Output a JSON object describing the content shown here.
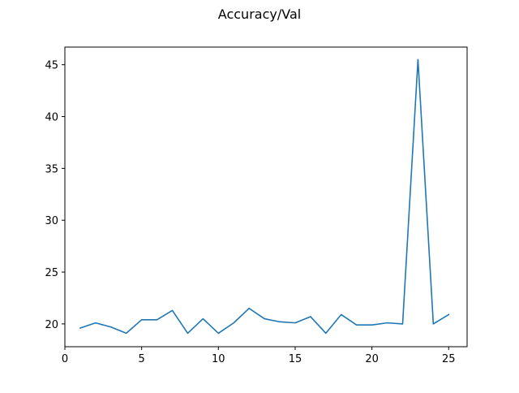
{
  "chart_data": {
    "type": "line",
    "title": "Accuracy/Val",
    "xlabel": "",
    "ylabel": "",
    "xlim": [
      0,
      26.2
    ],
    "ylim": [
      17.8,
      46.7
    ],
    "xticks": [
      0,
      5,
      10,
      15,
      20,
      25
    ],
    "yticks": [
      20,
      25,
      30,
      35,
      40,
      45
    ],
    "grid": false,
    "series": [
      {
        "color": "#1f77b4",
        "x": [
          1,
          2,
          3,
          4,
          5,
          6,
          7,
          8,
          9,
          10,
          11,
          12,
          13,
          14,
          15,
          16,
          17,
          18,
          19,
          20,
          21,
          22,
          23,
          24,
          25
        ],
        "y": [
          19.6,
          20.1,
          19.7,
          19.1,
          20.4,
          20.4,
          21.3,
          19.1,
          20.5,
          19.1,
          20.1,
          21.5,
          20.5,
          20.2,
          20.1,
          20.7,
          19.1,
          20.9,
          19.9,
          19.9,
          20.1,
          20.0,
          45.5,
          20.0,
          20.9
        ]
      }
    ]
  }
}
